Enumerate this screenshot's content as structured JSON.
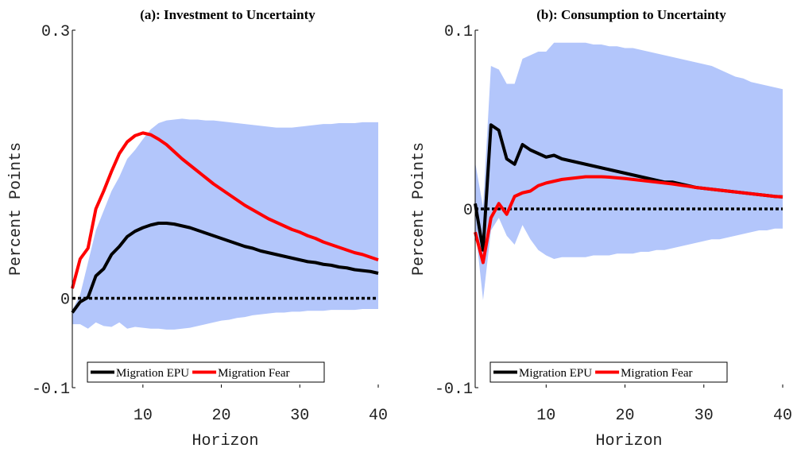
{
  "chart_data": [
    {
      "type": "line",
      "title": "(a): Investment to Uncertainty",
      "xlabel": "Horizon",
      "ylabel": "Percent Points",
      "x": [
        1,
        2,
        3,
        4,
        5,
        6,
        7,
        8,
        9,
        10,
        11,
        12,
        13,
        14,
        15,
        16,
        17,
        18,
        19,
        20,
        21,
        22,
        23,
        24,
        25,
        26,
        27,
        28,
        29,
        30,
        31,
        32,
        33,
        34,
        35,
        36,
        37,
        38,
        39,
        40
      ],
      "xlim": [
        1,
        40
      ],
      "xticks": [
        10,
        20,
        30,
        40
      ],
      "ylim": [
        -0.1,
        0.3
      ],
      "yticks": [
        -0.1,
        0,
        0.3
      ],
      "reference_line": 0,
      "legend": "lower center",
      "band": {
        "color": "#b3c6fb",
        "upper": [
          -0.013,
          0.004,
          0.04,
          0.076,
          0.098,
          0.12,
          0.136,
          0.156,
          0.166,
          0.178,
          0.189,
          0.196,
          0.199,
          0.2,
          0.201,
          0.2,
          0.2,
          0.199,
          0.199,
          0.198,
          0.197,
          0.196,
          0.195,
          0.194,
          0.193,
          0.192,
          0.191,
          0.191,
          0.191,
          0.192,
          0.193,
          0.194,
          0.195,
          0.195,
          0.196,
          0.196,
          0.196,
          0.197,
          0.197,
          0.197
        ],
        "lower": [
          -0.029,
          -0.029,
          -0.034,
          -0.027,
          -0.031,
          -0.032,
          -0.027,
          -0.034,
          -0.032,
          -0.033,
          -0.034,
          -0.034,
          -0.035,
          -0.035,
          -0.034,
          -0.033,
          -0.031,
          -0.029,
          -0.027,
          -0.025,
          -0.024,
          -0.022,
          -0.021,
          -0.019,
          -0.018,
          -0.017,
          -0.016,
          -0.016,
          -0.015,
          -0.015,
          -0.014,
          -0.014,
          -0.014,
          -0.013,
          -0.013,
          -0.013,
          -0.013,
          -0.012,
          -0.012,
          -0.012
        ]
      },
      "series": [
        {
          "name": "Migration EPU",
          "color": "#000000",
          "values": [
            -0.016,
            -0.004,
            0.001,
            0.025,
            0.033,
            0.049,
            0.058,
            0.069,
            0.075,
            0.079,
            0.082,
            0.084,
            0.084,
            0.083,
            0.081,
            0.079,
            0.076,
            0.073,
            0.07,
            0.067,
            0.064,
            0.061,
            0.058,
            0.056,
            0.053,
            0.051,
            0.049,
            0.047,
            0.045,
            0.043,
            0.041,
            0.04,
            0.038,
            0.037,
            0.035,
            0.034,
            0.032,
            0.031,
            0.03,
            0.028
          ]
        },
        {
          "name": "Migration Fear",
          "color": "#ff0000",
          "values": [
            0.011,
            0.044,
            0.056,
            0.1,
            0.12,
            0.142,
            0.162,
            0.175,
            0.182,
            0.185,
            0.183,
            0.178,
            0.172,
            0.164,
            0.156,
            0.149,
            0.142,
            0.135,
            0.128,
            0.122,
            0.116,
            0.11,
            0.104,
            0.099,
            0.094,
            0.089,
            0.085,
            0.081,
            0.077,
            0.074,
            0.07,
            0.067,
            0.063,
            0.06,
            0.057,
            0.054,
            0.051,
            0.049,
            0.046,
            0.043
          ]
        }
      ]
    },
    {
      "type": "line",
      "title": "(b): Consumption to Uncertainty",
      "xlabel": "Horizon",
      "ylabel": "Percent Points",
      "x": [
        1,
        2,
        3,
        4,
        5,
        6,
        7,
        8,
        9,
        10,
        11,
        12,
        13,
        14,
        15,
        16,
        17,
        18,
        19,
        20,
        21,
        22,
        23,
        24,
        25,
        26,
        27,
        28,
        29,
        30,
        31,
        32,
        33,
        34,
        35,
        36,
        37,
        38,
        39,
        40
      ],
      "xlim": [
        1,
        40
      ],
      "xticks": [
        10,
        20,
        30,
        40
      ],
      "ylim": [
        -0.1,
        0.1
      ],
      "yticks": [
        -0.1,
        0,
        0.1
      ],
      "reference_line": 0,
      "legend": "lower center",
      "band": {
        "color": "#b3c6fb",
        "upper": [
          0.026,
          0.001,
          0.08,
          0.078,
          0.07,
          0.07,
          0.084,
          0.086,
          0.088,
          0.088,
          0.093,
          0.093,
          0.093,
          0.093,
          0.093,
          0.092,
          0.092,
          0.091,
          0.091,
          0.09,
          0.09,
          0.089,
          0.088,
          0.087,
          0.086,
          0.085,
          0.084,
          0.083,
          0.082,
          0.081,
          0.08,
          0.078,
          0.076,
          0.074,
          0.073,
          0.071,
          0.07,
          0.069,
          0.068,
          0.067
        ],
        "lower": [
          -0.01,
          -0.051,
          -0.012,
          -0.005,
          -0.015,
          -0.02,
          -0.009,
          -0.017,
          -0.023,
          -0.026,
          -0.028,
          -0.027,
          -0.027,
          -0.027,
          -0.027,
          -0.026,
          -0.026,
          -0.026,
          -0.025,
          -0.025,
          -0.025,
          -0.024,
          -0.024,
          -0.023,
          -0.023,
          -0.022,
          -0.021,
          -0.02,
          -0.019,
          -0.018,
          -0.017,
          -0.017,
          -0.016,
          -0.015,
          -0.014,
          -0.013,
          -0.012,
          -0.012,
          -0.011,
          -0.011
        ]
      },
      "series": [
        {
          "name": "Migration EPU",
          "color": "#000000",
          "values": [
            0.003,
            -0.023,
            0.047,
            0.044,
            0.028,
            0.025,
            0.036,
            0.033,
            0.031,
            0.029,
            0.03,
            0.028,
            0.027,
            0.026,
            0.025,
            0.024,
            0.023,
            0.022,
            0.021,
            0.02,
            0.019,
            0.018,
            0.017,
            0.016,
            0.015,
            0.015,
            0.014,
            0.013,
            0.012,
            0.0115,
            0.011,
            0.0105,
            0.01,
            0.0095,
            0.009,
            0.0085,
            0.008,
            0.0075,
            0.007,
            0.0067
          ]
        },
        {
          "name": "Migration Fear",
          "color": "#ff0000",
          "values": [
            -0.013,
            -0.03,
            -0.005,
            0.003,
            -0.003,
            0.007,
            0.009,
            0.01,
            0.013,
            0.0145,
            0.0155,
            0.0165,
            0.017,
            0.0175,
            0.018,
            0.018,
            0.018,
            0.0178,
            0.0174,
            0.017,
            0.0165,
            0.016,
            0.0155,
            0.015,
            0.0145,
            0.014,
            0.0133,
            0.0127,
            0.012,
            0.0115,
            0.011,
            0.0105,
            0.01,
            0.0095,
            0.009,
            0.0085,
            0.008,
            0.0075,
            0.007,
            0.0067
          ]
        }
      ]
    }
  ]
}
